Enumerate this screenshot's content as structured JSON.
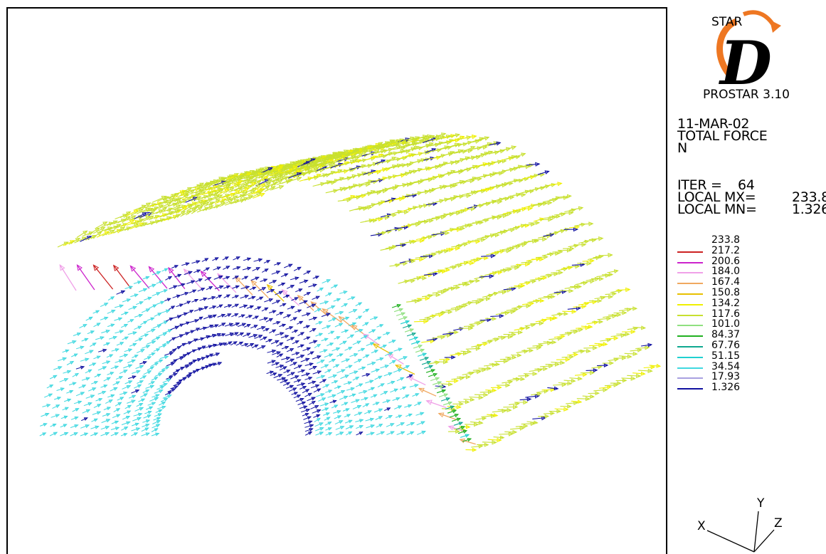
{
  "logo": {
    "brand_top": "STAR",
    "brand_letter": "D",
    "product": "PROSTAR 3.10"
  },
  "header": {
    "date": "11-MAR-02",
    "quantity": "TOTAL FORCE",
    "unit": "N"
  },
  "stats": {
    "iter_label": "ITER =",
    "iter_value": "64",
    "max_label": "LOCAL MX=",
    "max_value": "233.8",
    "min_label": "LOCAL MN=",
    "min_value": "1.326"
  },
  "legend": [
    {
      "value": "233.8",
      "color": null
    },
    {
      "value": "217.2",
      "color": "#cc2222"
    },
    {
      "value": "200.6",
      "color": "#cc22cc"
    },
    {
      "value": "184.0",
      "color": "#f0a0e8"
    },
    {
      "value": "167.4",
      "color": "#f0a860"
    },
    {
      "value": "150.8",
      "color": "#e8c000"
    },
    {
      "value": "134.2",
      "color": "#f0f000"
    },
    {
      "value": "117.6",
      "color": "#c8e030"
    },
    {
      "value": "101.0",
      "color": "#90e080"
    },
    {
      "value": "84.37",
      "color": "#20b020"
    },
    {
      "value": "67.76",
      "color": "#10a890"
    },
    {
      "value": "51.15",
      "color": "#20d0d0"
    },
    {
      "value": "34.54",
      "color": "#40d8e0"
    },
    {
      "value": "17.93",
      "color": "#a8a0e0"
    },
    {
      "value": "1.326",
      "color": "#1010a0"
    }
  ],
  "axes": {
    "x": "X",
    "y": "Y",
    "z": "Z"
  }
}
